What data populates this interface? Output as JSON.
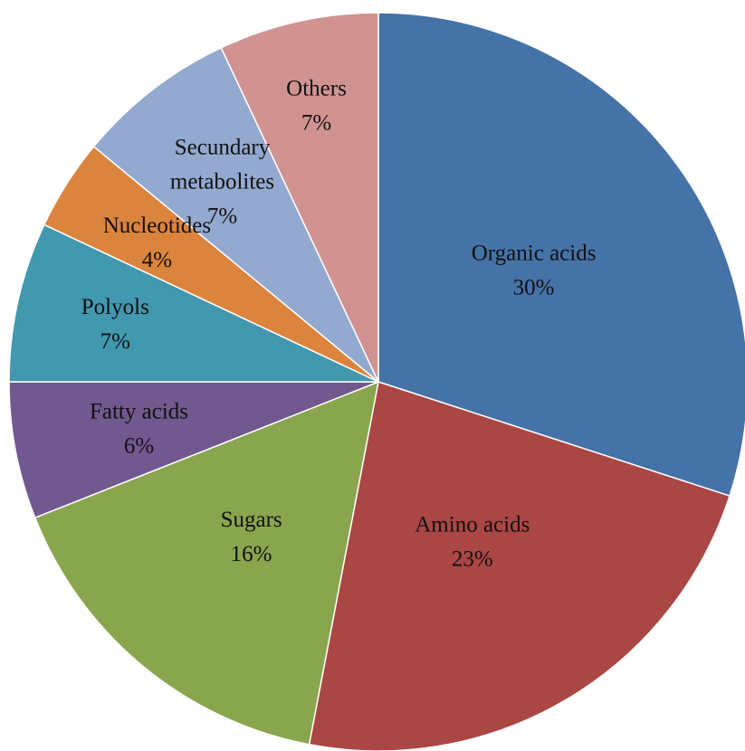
{
  "chart_data": {
    "type": "pie",
    "start_angle_deg": 0,
    "direction": "clockwise",
    "legend": "none",
    "slices": [
      {
        "label": "Organic acids",
        "value": 30,
        "value_label": "30%",
        "color": "#4572A7"
      },
      {
        "label": "Amino acids",
        "value": 23,
        "value_label": "23%",
        "color": "#AA4643"
      },
      {
        "label": "Sugars",
        "value": 16,
        "value_label": "16%",
        "color": "#89A54E"
      },
      {
        "label": "Fatty acids",
        "value": 6,
        "value_label": "6%",
        "color": "#71588F"
      },
      {
        "label": "Polyols",
        "value": 7,
        "value_label": "7%",
        "color": "#4198AF"
      },
      {
        "label": "Nucleotides",
        "value": 4,
        "value_label": "4%",
        "color": "#DB843D"
      },
      {
        "label": "Secundary metabolites",
        "value": 7,
        "value_label": "7%",
        "color": "#93A9CF"
      },
      {
        "label": "Others",
        "value": 7,
        "value_label": "7%",
        "color": "#D09392"
      }
    ]
  }
}
